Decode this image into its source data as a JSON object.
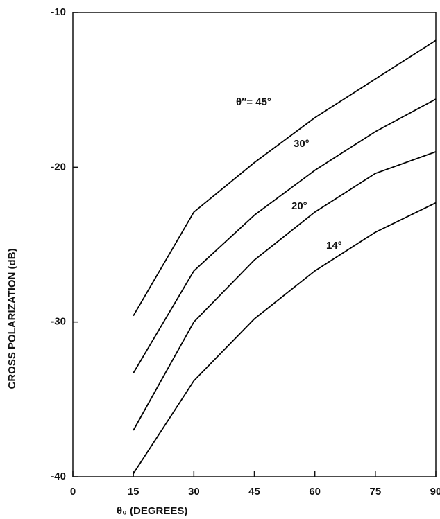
{
  "chart_data": {
    "type": "line",
    "xlabel": "θ₀ (DEGREES)",
    "ylabel": "CROSS POLARIZATION (dB)",
    "x": [
      15,
      30,
      45,
      60,
      75,
      90
    ],
    "series": [
      {
        "name": "θ″= 45°",
        "color": "#000000",
        "values": [
          -29.6,
          -22.9,
          -19.7,
          -16.8,
          -14.3,
          -11.8
        ]
      },
      {
        "name": "30°",
        "color": "#000000",
        "values": [
          -33.3,
          -26.7,
          -23.1,
          -20.2,
          -17.7,
          -15.6
        ]
      },
      {
        "name": "20°",
        "color": "#000000",
        "values": [
          -37.0,
          -30.0,
          -26.0,
          -22.9,
          -20.4,
          -19.0
        ]
      },
      {
        "name": "14°",
        "color": "#000000",
        "values": [
          -39.8,
          -33.8,
          -29.8,
          -26.7,
          -24.2,
          -22.3
        ]
      }
    ],
    "xlim": [
      0,
      90
    ],
    "xticks": [
      0,
      15,
      30,
      45,
      60,
      75,
      90
    ],
    "ylim": [
      -40,
      -10
    ],
    "yticks": [
      -10,
      -20,
      -30,
      -40
    ]
  }
}
